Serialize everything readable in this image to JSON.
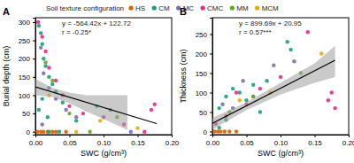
{
  "chart_data": [
    {
      "type": "scatter",
      "title": "A",
      "legend": "top",
      "legend_title": "Soil texture configuration",
      "xlabel": "SWC (g/cm³)",
      "ylabel": "Burial depth (cm)",
      "xlim": [
        0,
        0.2
      ],
      "ylim": [
        -8,
        312
      ],
      "xticks": [
        {
          "value": 0,
          "label": "0.00"
        },
        {
          "value": 0.05,
          "label": "0.05"
        },
        {
          "value": 0.1,
          "label": "0.10"
        },
        {
          "value": 0.15,
          "label": "0.15"
        },
        {
          "value": 0.2,
          "label": "0.20"
        }
      ],
      "yticks": [
        0,
        50,
        100,
        150,
        200,
        250,
        300
      ],
      "annotations": [
        "y = -564.42x + 122.72",
        "r = -0.25*"
      ],
      "series": [
        {
          "name": "HS",
          "color": "#d95f02",
          "x": [
            0.003,
            0.008,
            0.012,
            0.018,
            0.025,
            0.03,
            0.045
          ],
          "values": [
            0,
            0,
            0,
            0,
            0,
            0,
            0
          ]
        },
        {
          "name": "CM",
          "color": "#1b9e77",
          "x": [
            0.005,
            0.008,
            0.01,
            0.012,
            0.015,
            0.02,
            0.025,
            0.03,
            0.01,
            0.005,
            0.018,
            0.04,
            0.06,
            0.09,
            0.11,
            0.02,
            0.035
          ],
          "values": [
            290,
            270,
            240,
            200,
            180,
            150,
            130,
            110,
            90,
            60,
            40,
            80,
            30,
            70,
            60,
            0,
            0
          ]
        },
        {
          "name": "MC",
          "color": "#7570b3",
          "x": [
            0.008,
            0.012,
            0.02,
            0.03,
            0.045,
            0.06,
            0.01,
            0.14
          ],
          "values": [
            230,
            160,
            120,
            90,
            60,
            40,
            20,
            0
          ]
        },
        {
          "name": "CMC",
          "color": "#e7298a",
          "x": [
            0.004,
            0.01,
            0.015,
            0.02,
            0.03,
            0.04,
            0.05,
            0.07,
            0.1,
            0.13,
            0.175,
            0.17,
            0.16
          ],
          "values": [
            300,
            260,
            220,
            175,
            140,
            100,
            70,
            50,
            40,
            20,
            75,
            60,
            0
          ]
        },
        {
          "name": "MM",
          "color": "#66a61e",
          "x": [
            0.015,
            0.025,
            0.05,
            0.08,
            0.12
          ],
          "values": [
            190,
            140,
            50,
            0,
            40
          ]
        },
        {
          "name": "MCM",
          "color": "#e6ab02",
          "x": [
            0.02,
            0.06,
            0.095,
            0.15
          ],
          "values": [
            100,
            0,
            30,
            10
          ]
        }
      ],
      "trend_line": {
        "x": [
          0,
          0.178
        ],
        "values": [
          122.72,
          22.26
        ]
      },
      "confidence_band": {
        "x": [
          0,
          0.025,
          0.05,
          0.075,
          0.1,
          0.135
        ],
        "lower": [
          100,
          95,
          78,
          55,
          35,
          5
        ],
        "upper": [
          145,
          120,
          107,
          100,
          100,
          100
        ]
      }
    },
    {
      "type": "scatter",
      "title": "B",
      "xlabel": "SWC (g/cm³)",
      "ylabel": "Thickness (cm)",
      "xlim": [
        0,
        0.2
      ],
      "ylim": [
        -8,
        292
      ],
      "xticks": [
        {
          "value": 0,
          "label": "0.00"
        },
        {
          "value": 0.05,
          "label": "0.05"
        },
        {
          "value": 0.1,
          "label": "0.10"
        },
        {
          "value": 0.15,
          "label": "0.15"
        },
        {
          "value": 0.2,
          "label": "0.20"
        }
      ],
      "yticks": [
        0,
        50,
        100,
        150,
        200,
        250
      ],
      "annotations": [
        "y = 899.69x + 20.95",
        "r = 0.57***"
      ],
      "series": [
        {
          "color": "#d95f02",
          "x": [
            0.003,
            0.008,
            0.012,
            0.018,
            0.025,
            0.035
          ],
          "values": [
            0,
            0,
            0,
            0,
            0,
            0
          ]
        },
        {
          "color": "#1b9e77",
          "x": [
            0.01,
            0.02,
            0.03,
            0.04,
            0.05,
            0.06,
            0.08,
            0.11,
            0.115,
            0.07,
            0.02,
            0.01
          ],
          "values": [
            60,
            90,
            110,
            100,
            80,
            120,
            130,
            230,
            210,
            50,
            30,
            10
          ]
        },
        {
          "color": "#7570b3",
          "x": [
            0.015,
            0.03,
            0.045,
            0.09,
            0.12,
            0.06
          ],
          "values": [
            70,
            60,
            130,
            170,
            180,
            90
          ]
        },
        {
          "color": "#e7298a",
          "x": [
            0.005,
            0.02,
            0.035,
            0.05,
            0.07,
            0.1,
            0.14,
            0.175,
            0.18,
            0.17
          ],
          "values": [
            20,
            40,
            100,
            70,
            110,
            140,
            255,
            100,
            60,
            80
          ]
        },
        {
          "color": "#66a61e",
          "x": [
            0.025,
            0.06,
            0.13
          ],
          "values": [
            50,
            90,
            150
          ]
        },
        {
          "color": "#e6ab02",
          "x": [
            0.04,
            0.085,
            0.16
          ],
          "values": [
            80,
            100,
            200
          ]
        }
      ],
      "trend_line": {
        "x": [
          0,
          0.18
        ],
        "values": [
          20.95,
          182.9
        ]
      },
      "confidence_band": {
        "x": [
          0,
          0.05,
          0.1,
          0.15,
          0.18
        ],
        "lower": [
          5,
          55,
          95,
          125,
          140
        ],
        "upper": [
          35,
          75,
          125,
          175,
          220
        ]
      }
    }
  ]
}
